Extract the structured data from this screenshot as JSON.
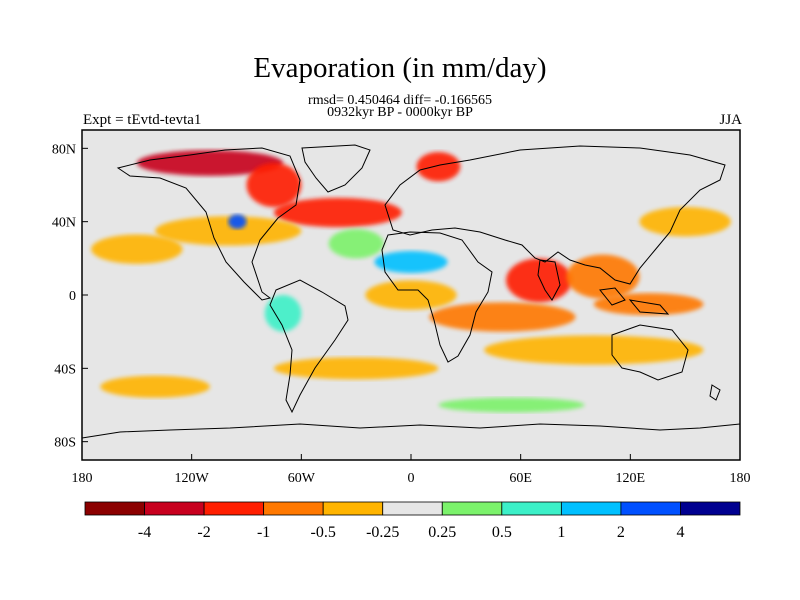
{
  "title": "Evaporation (in mm/day)",
  "subtitle_line1": "rmsd= 0.450464 diff= -0.166565",
  "subtitle_line2": "0932kyr BP - 0000kyr BP",
  "left_header": "Expt = tEvtd-tevta1",
  "right_header": "JJA",
  "map": {
    "projection": "cylindrical-equidistant",
    "lon_range": [
      -180,
      180
    ],
    "lat_range": [
      -90,
      90
    ],
    "lon_ticks": [
      {
        "value": -180,
        "label": "180"
      },
      {
        "value": -120,
        "label": "120W"
      },
      {
        "value": -60,
        "label": "60W"
      },
      {
        "value": 0,
        "label": "0"
      },
      {
        "value": 60,
        "label": "60E"
      },
      {
        "value": 120,
        "label": "120E"
      },
      {
        "value": 180,
        "label": "180"
      }
    ],
    "lat_ticks": [
      {
        "value": 80,
        "label": "80N"
      },
      {
        "value": 40,
        "label": "40N"
      },
      {
        "value": 0,
        "label": "0"
      },
      {
        "value": -40,
        "label": "40S"
      },
      {
        "value": -80,
        "label": "80S"
      }
    ],
    "background_color": "#e6e6e6",
    "anomaly_patches": [
      {
        "lon": -110,
        "lat": 72,
        "rlon": 40,
        "rlat": 7,
        "level": 1
      },
      {
        "lon": -75,
        "lat": 60,
        "rlon": 15,
        "rlat": 12,
        "level": 2
      },
      {
        "lon": -40,
        "lat": 45,
        "rlon": 35,
        "rlat": 8,
        "level": 2
      },
      {
        "lon": 15,
        "lat": 70,
        "rlon": 12,
        "rlat": 8,
        "level": 2
      },
      {
        "lon": 70,
        "lat": 8,
        "rlon": 18,
        "rlat": 12,
        "level": 2
      },
      {
        "lon": 105,
        "lat": 10,
        "rlon": 20,
        "rlat": 12,
        "level": 3
      },
      {
        "lon": 130,
        "lat": -5,
        "rlon": 30,
        "rlat": 6,
        "level": 3
      },
      {
        "lon": 50,
        "lat": -12,
        "rlon": 40,
        "rlat": 8,
        "level": 3
      },
      {
        "lon": -140,
        "lat": -50,
        "rlon": 30,
        "rlat": 6,
        "level": 4
      },
      {
        "lon": -100,
        "lat": 35,
        "rlon": 40,
        "rlat": 8,
        "level": 4
      },
      {
        "lon": 0,
        "lat": 0,
        "rlon": 25,
        "rlat": 8,
        "level": 4
      },
      {
        "lon": 100,
        "lat": -30,
        "rlon": 60,
        "rlat": 8,
        "level": 4
      },
      {
        "lon": -30,
        "lat": -40,
        "rlon": 45,
        "rlat": 6,
        "level": 4
      },
      {
        "lon": -150,
        "lat": 25,
        "rlon": 25,
        "rlat": 8,
        "level": 4
      },
      {
        "lon": 150,
        "lat": 40,
        "rlon": 25,
        "rlat": 8,
        "level": 4
      },
      {
        "lon": -30,
        "lat": 28,
        "rlon": 15,
        "rlat": 8,
        "level": 6
      },
      {
        "lon": -70,
        "lat": -10,
        "rlon": 10,
        "rlat": 10,
        "level": 7
      },
      {
        "lon": 0,
        "lat": 18,
        "rlon": 20,
        "rlat": 6,
        "level": 8
      },
      {
        "lon": -95,
        "lat": 40,
        "rlon": 5,
        "rlat": 4,
        "level": 9
      },
      {
        "lon": 55,
        "lat": -60,
        "rlon": 40,
        "rlat": 4,
        "level": 6
      }
    ]
  },
  "colorbar": {
    "colors": [
      "#8b0000",
      "#c8001e",
      "#ff1e00",
      "#ff7800",
      "#ffb400",
      "#e6e6e6",
      "#7bf26b",
      "#3cf0c8",
      "#00c0ff",
      "#0050ff",
      "#000090"
    ],
    "labels": [
      "-4",
      "-2",
      "-1",
      "-0.5",
      "-0.25",
      "0.25",
      "0.5",
      "1",
      "2",
      "4"
    ]
  }
}
